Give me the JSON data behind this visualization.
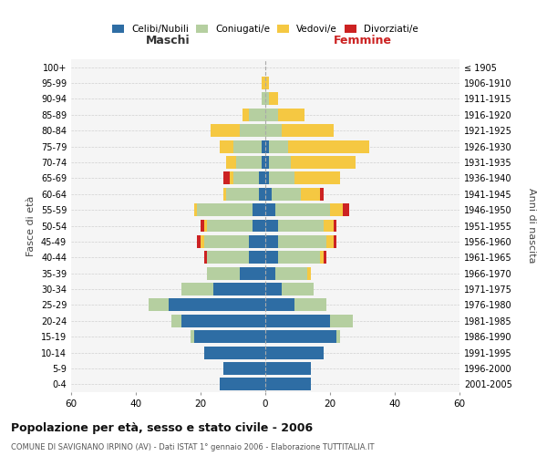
{
  "age_groups": [
    "0-4",
    "5-9",
    "10-14",
    "15-19",
    "20-24",
    "25-29",
    "30-34",
    "35-39",
    "40-44",
    "45-49",
    "50-54",
    "55-59",
    "60-64",
    "65-69",
    "70-74",
    "75-79",
    "80-84",
    "85-89",
    "90-94",
    "95-99",
    "100+"
  ],
  "birth_years": [
    "2001-2005",
    "1996-2000",
    "1991-1995",
    "1986-1990",
    "1981-1985",
    "1976-1980",
    "1971-1975",
    "1966-1970",
    "1961-1965",
    "1956-1960",
    "1951-1955",
    "1946-1950",
    "1941-1945",
    "1936-1940",
    "1931-1935",
    "1926-1930",
    "1921-1925",
    "1916-1920",
    "1911-1915",
    "1906-1910",
    "≤ 1905"
  ],
  "maschi": {
    "celibi": [
      14,
      13,
      19,
      22,
      26,
      30,
      16,
      8,
      5,
      5,
      4,
      4,
      2,
      2,
      1,
      1,
      0,
      0,
      0,
      0,
      0
    ],
    "coniugati": [
      0,
      0,
      0,
      1,
      3,
      6,
      10,
      10,
      13,
      14,
      14,
      17,
      10,
      8,
      8,
      9,
      8,
      5,
      1,
      0,
      0
    ],
    "vedovi": [
      0,
      0,
      0,
      0,
      0,
      0,
      0,
      0,
      0,
      1,
      1,
      1,
      1,
      1,
      3,
      4,
      9,
      2,
      0,
      1,
      0
    ],
    "divorziati": [
      0,
      0,
      0,
      0,
      0,
      0,
      0,
      0,
      1,
      1,
      1,
      0,
      0,
      2,
      0,
      0,
      0,
      0,
      0,
      0,
      0
    ]
  },
  "femmine": {
    "nubili": [
      14,
      14,
      18,
      22,
      20,
      9,
      5,
      3,
      4,
      4,
      4,
      3,
      2,
      1,
      1,
      1,
      0,
      0,
      0,
      0,
      0
    ],
    "coniugate": [
      0,
      0,
      0,
      1,
      7,
      10,
      10,
      10,
      13,
      15,
      14,
      17,
      9,
      8,
      7,
      6,
      5,
      4,
      1,
      0,
      0
    ],
    "vedove": [
      0,
      0,
      0,
      0,
      0,
      0,
      0,
      1,
      1,
      2,
      3,
      4,
      6,
      14,
      20,
      25,
      16,
      8,
      3,
      1,
      0
    ],
    "divorziate": [
      0,
      0,
      0,
      0,
      0,
      0,
      0,
      0,
      1,
      1,
      1,
      2,
      1,
      0,
      0,
      0,
      0,
      0,
      0,
      0,
      0
    ]
  },
  "colors": {
    "celibi": "#2e6da4",
    "coniugati": "#b5cfa0",
    "vedovi": "#f5c842",
    "divorziati": "#cc2222"
  },
  "title": "Popolazione per età, sesso e stato civile - 2006",
  "subtitle": "COMUNE DI SAVIGNANO IRPINO (AV) - Dati ISTAT 1° gennaio 2006 - Elaborazione TUTTITALIA.IT",
  "xlabel_left": "Maschi",
  "xlabel_right": "Femmine",
  "ylabel_left": "Fasce di età",
  "ylabel_right": "Anni di nascita",
  "xlim": 60,
  "legend_labels": [
    "Celibi/Nubili",
    "Coniugati/e",
    "Vedovi/e",
    "Divorziati/e"
  ],
  "bg_color": "#f5f5f5",
  "plot_bg": "#ffffff"
}
